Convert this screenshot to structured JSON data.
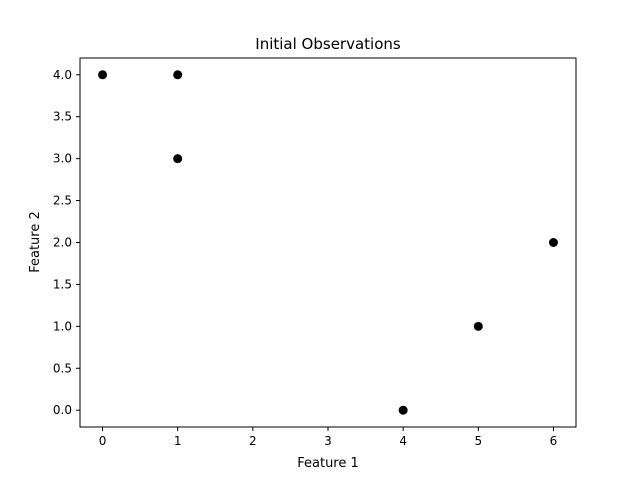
{
  "chart_data": {
    "type": "scatter",
    "title": "Initial Observations",
    "xlabel": "Feature 1",
    "ylabel": "Feature 2",
    "xlim": [
      -0.3,
      6.3
    ],
    "ylim": [
      -0.2,
      4.2
    ],
    "x_ticks": [
      "0",
      "1",
      "2",
      "3",
      "4",
      "5",
      "6"
    ],
    "y_ticks": [
      "0.0",
      "0.5",
      "1.0",
      "1.5",
      "2.0",
      "2.5",
      "3.0",
      "3.5",
      "4.0"
    ],
    "grid": false,
    "marker_color": "#000000",
    "points": [
      {
        "x": 0,
        "y": 4
      },
      {
        "x": 1,
        "y": 4
      },
      {
        "x": 1,
        "y": 3
      },
      {
        "x": 4,
        "y": 0
      },
      {
        "x": 5,
        "y": 1
      },
      {
        "x": 6,
        "y": 2
      }
    ]
  }
}
